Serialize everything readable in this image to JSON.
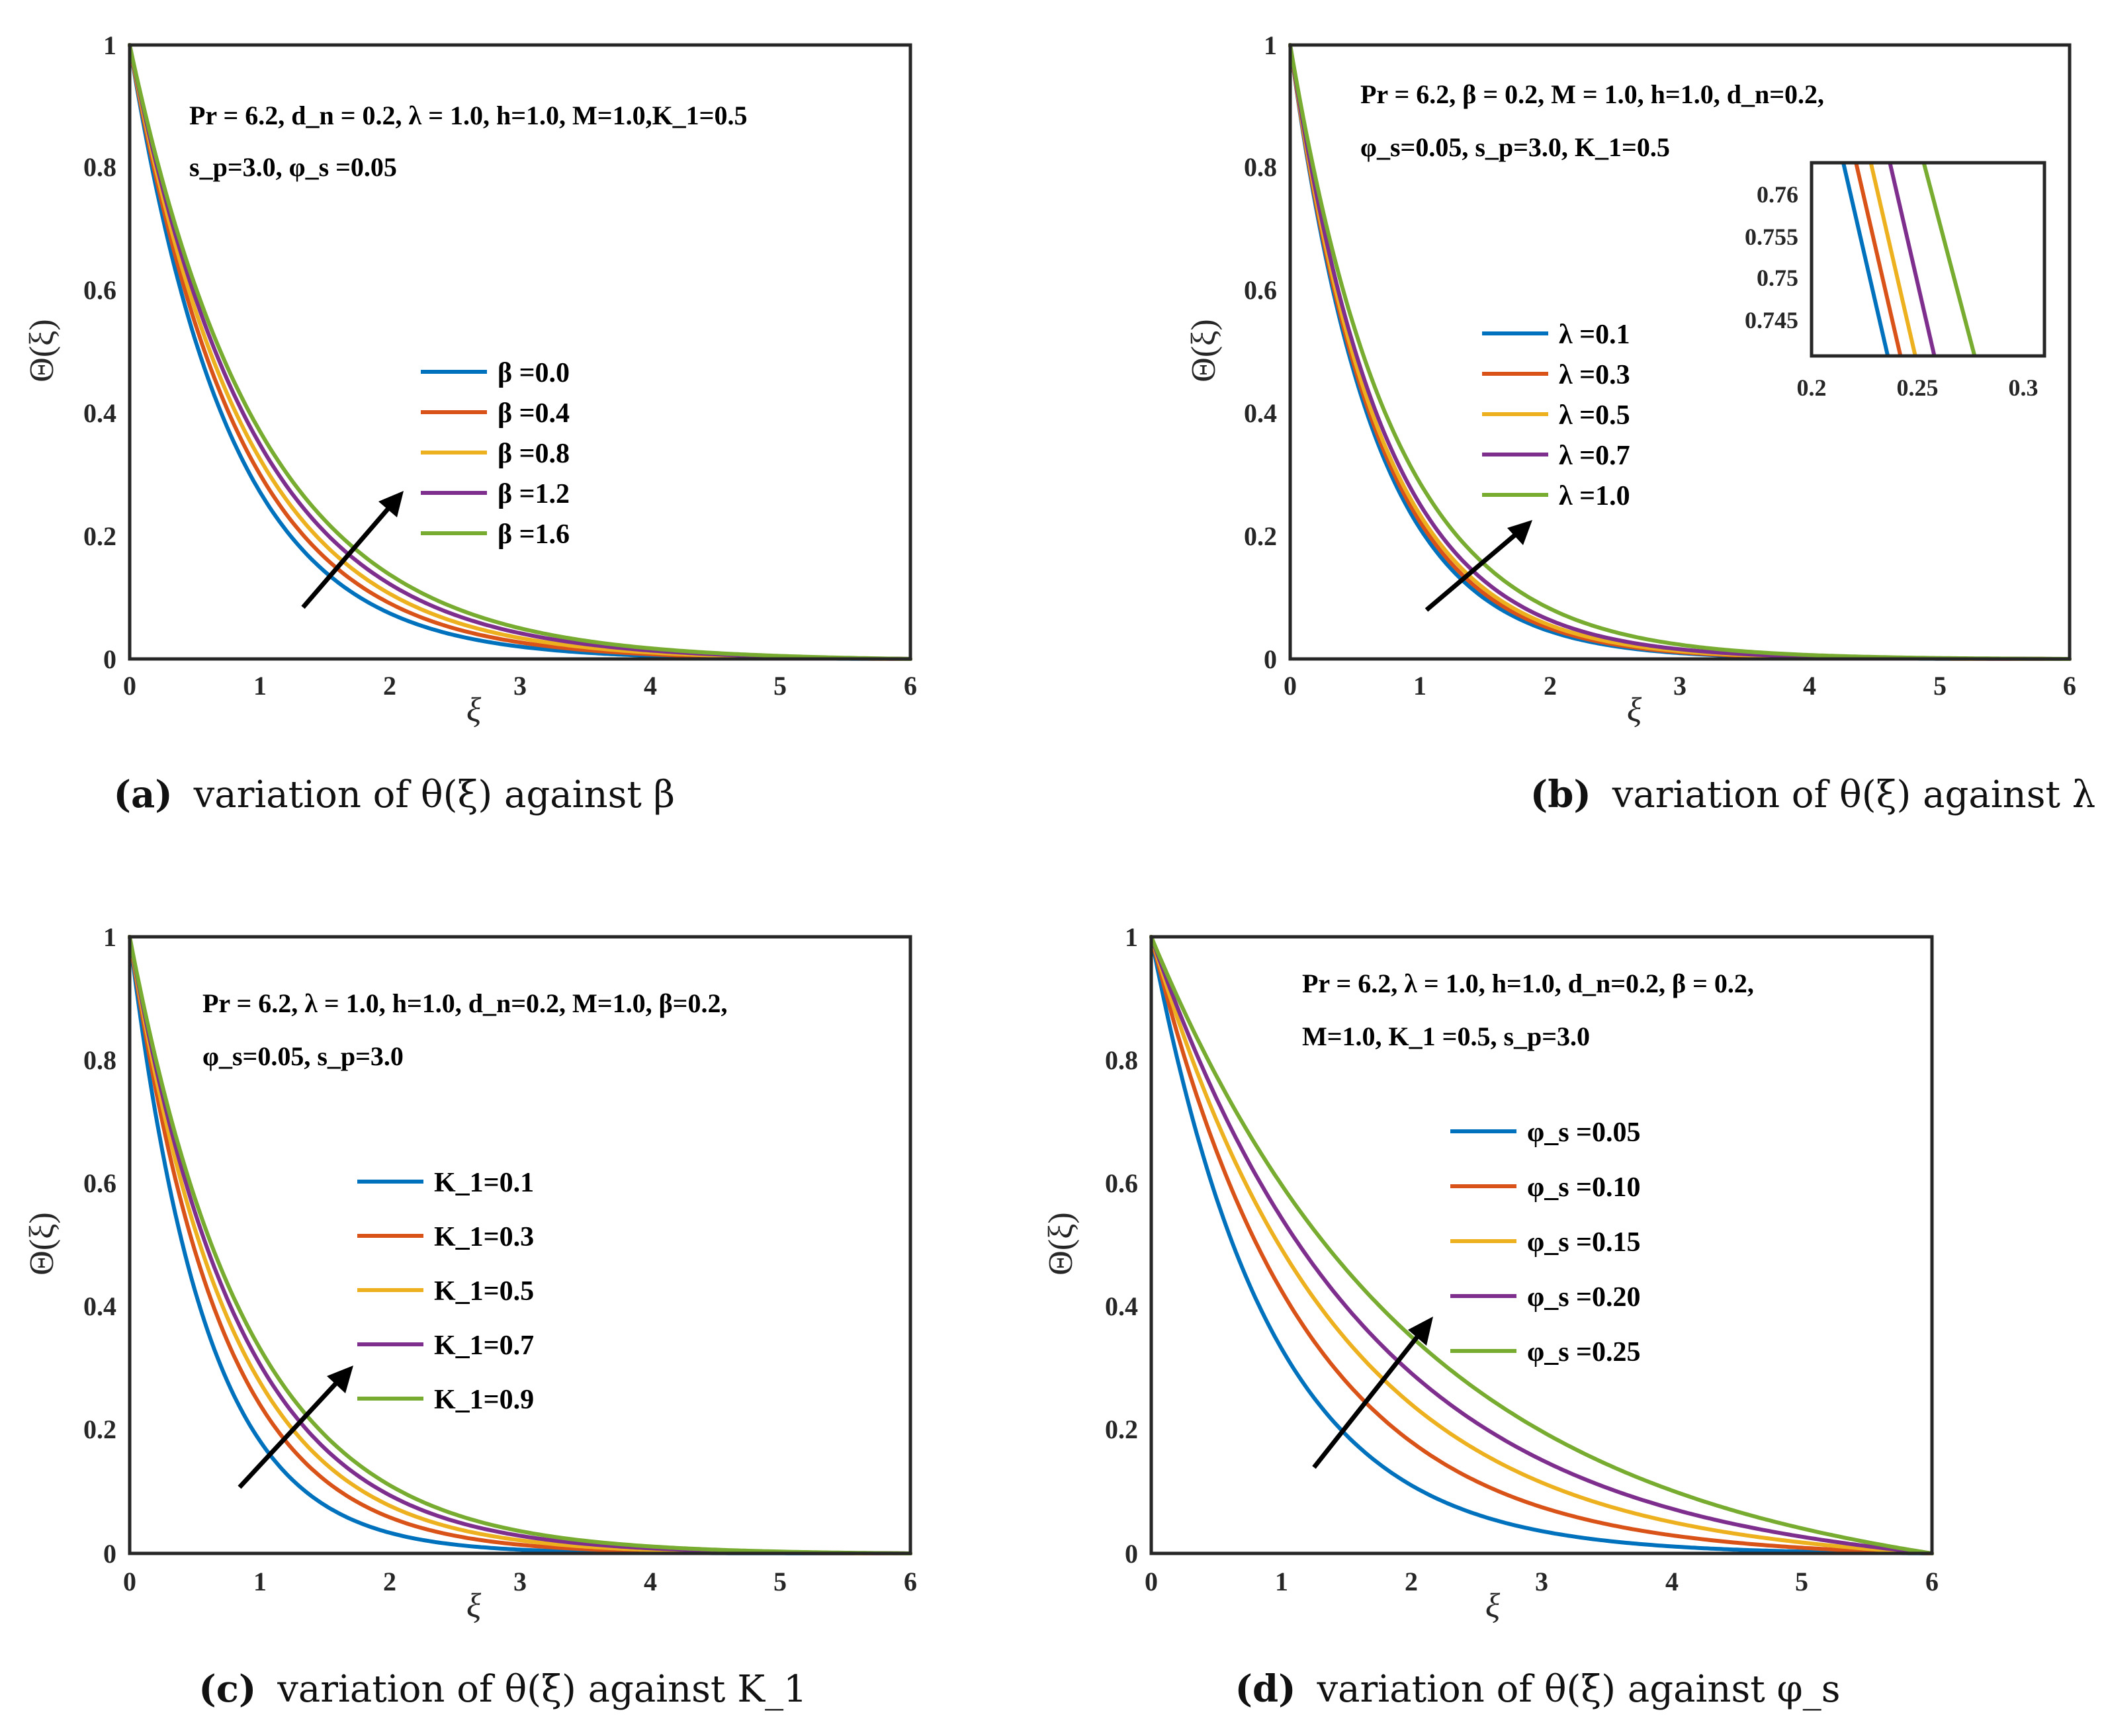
{
  "chart_data": [
    {
      "type": "line",
      "panel": "a",
      "caption": {
        "label": "(a)",
        "text": "variation of θ(ξ) against β"
      },
      "xlabel": "ξ",
      "ylabel": "Θ(ξ)",
      "xlim": [
        0,
        6
      ],
      "ylim": [
        0,
        1
      ],
      "xticks": [
        "0",
        "1",
        "2",
        "3",
        "4",
        "5",
        "6"
      ],
      "yticks": [
        "0",
        "0.2",
        "0.4",
        "0.6",
        "0.8",
        "1"
      ],
      "params": [
        "Pr = 6.2, d_n = 0.2, λ = 1.0, h=1.0, M=1.0,K_1=0.5",
        "s_p=3.0, φ_s =0.05"
      ],
      "legend": [
        "β =0.0",
        "β =0.4",
        "β =0.8",
        "β =1.2",
        "β =1.6"
      ],
      "arrow": "increasing β",
      "series": [
        {
          "name": "β =0.0",
          "color": "#0072BD",
          "decay": 1.3,
          "values": [
            1,
            0.288,
            0.07,
            0.018,
            0.0035,
            0.0007,
            0
          ]
        },
        {
          "name": "β =0.4",
          "color": "#D95319",
          "decay": 1.2,
          "values": [
            1,
            0.316,
            0.087,
            0.025,
            0.006,
            0.0012,
            0
          ]
        },
        {
          "name": "β =0.8",
          "color": "#EDB120",
          "decay": 1.12,
          "values": [
            1,
            0.339,
            0.102,
            0.031,
            0.009,
            0.0019,
            0
          ]
        },
        {
          "name": "β =1.2",
          "color": "#7E2F8E",
          "decay": 1.05,
          "values": [
            1,
            0.361,
            0.119,
            0.04,
            0.012,
            0.0028,
            0
          ]
        },
        {
          "name": "β =1.6",
          "color": "#77AC30",
          "decay": 0.99,
          "values": [
            1,
            0.383,
            0.136,
            0.048,
            0.016,
            0.004,
            0
          ]
        }
      ]
    },
    {
      "type": "line",
      "panel": "b",
      "caption": {
        "label": "(b)",
        "text": "variation of θ(ξ) against λ"
      },
      "xlabel": "ξ",
      "ylabel": "Θ(ξ)",
      "xlim": [
        0,
        6
      ],
      "ylim": [
        0,
        1
      ],
      "xticks": [
        "0",
        "1",
        "2",
        "3",
        "4",
        "5",
        "6"
      ],
      "yticks": [
        "0",
        "0.2",
        "0.4",
        "0.6",
        "0.8",
        "1"
      ],
      "params": [
        "Pr = 6.2, β = 0.2, M = 1.0, h=1.0, d_n=0.2,",
        "φ_s=0.05, s_p=3.0, K_1=0.5"
      ],
      "legend": [
        "λ =0.1",
        "λ =0.3",
        "λ =0.5",
        "λ =0.7",
        "λ =1.0"
      ],
      "arrow": "increasing λ",
      "series": [
        {
          "name": "λ =0.1",
          "color": "#0072BD",
          "decay": 1.55,
          "values": [
            1,
            0.218,
            0.045,
            0.009,
            0.002,
            0.0003,
            0
          ]
        },
        {
          "name": "λ =0.3",
          "color": "#D95319",
          "decay": 1.5,
          "values": [
            1,
            0.228,
            0.05,
            0.011,
            0.0025,
            0.0004,
            0
          ]
        },
        {
          "name": "λ =0.5",
          "color": "#EDB120",
          "decay": 1.45,
          "values": [
            1,
            0.238,
            0.055,
            0.013,
            0.003,
            0.0005,
            0
          ]
        },
        {
          "name": "λ =0.7",
          "color": "#7E2F8E",
          "decay": 1.38,
          "values": [
            1,
            0.256,
            0.064,
            0.016,
            0.004,
            0.0007,
            0
          ]
        },
        {
          "name": "λ =1.0",
          "color": "#77AC30",
          "decay": 1.25,
          "values": [
            1,
            0.292,
            0.083,
            0.024,
            0.006,
            0.0012,
            0
          ]
        }
      ],
      "inset": {
        "xlim": [
          0.2,
          0.31
        ],
        "ylim": [
          0.7415,
          0.7635
        ],
        "xticks": [
          "0.2",
          "0.25",
          "0.3"
        ],
        "yticks": [
          "0.745",
          "0.75",
          "0.755",
          "0.76"
        ],
        "lines": [
          {
            "color": "#0072BD",
            "x_top": 0.215,
            "x_bottom": 0.236
          },
          {
            "color": "#D95319",
            "x_top": 0.221,
            "x_bottom": 0.242
          },
          {
            "color": "#EDB120",
            "x_top": 0.228,
            "x_bottom": 0.249
          },
          {
            "color": "#7E2F8E",
            "x_top": 0.237,
            "x_bottom": 0.258
          },
          {
            "color": "#77AC30",
            "x_top": 0.253,
            "x_bottom": 0.277
          }
        ]
      }
    },
    {
      "type": "line",
      "panel": "c",
      "caption": {
        "label": "(c)",
        "text": "variation of θ(ξ) against K_1"
      },
      "xlabel": "ξ",
      "ylabel": "Θ(ξ)",
      "xlim": [
        0,
        6
      ],
      "ylim": [
        0,
        1
      ],
      "xticks": [
        "0",
        "1",
        "2",
        "3",
        "4",
        "5",
        "6"
      ],
      "yticks": [
        "0",
        "0.2",
        "0.4",
        "0.6",
        "0.8",
        "1"
      ],
      "params": [
        "Pr = 6.2, λ = 1.0, h=1.0, d_n=0.2, M=1.0, β=0.2,",
        "φ_s=0.05, s_p=3.0"
      ],
      "legend": [
        "K_1=0.1",
        "K_1=0.3",
        "K_1=0.5",
        "K_1=0.7",
        "K_1=0.9"
      ],
      "arrow": "increasing K_1",
      "series": [
        {
          "name": "K_1=0.1",
          "color": "#0072BD",
          "decay": 1.7,
          "values": [
            1,
            0.196,
            0.03,
            0.005,
            0.001,
            0.0002,
            0
          ]
        },
        {
          "name": "K_1=0.3",
          "color": "#D95319",
          "decay": 1.42,
          "values": [
            1,
            0.244,
            0.057,
            0.014,
            0.003,
            0.0006,
            0
          ]
        },
        {
          "name": "K_1=0.5",
          "color": "#EDB120",
          "decay": 1.28,
          "values": [
            1,
            0.28,
            0.078,
            0.022,
            0.006,
            0.0012,
            0
          ]
        },
        {
          "name": "K_1=0.7",
          "color": "#7E2F8E",
          "decay": 1.18,
          "values": [
            1,
            0.308,
            0.095,
            0.029,
            0.008,
            0.0018,
            0
          ]
        },
        {
          "name": "K_1=0.9",
          "color": "#77AC30",
          "decay": 1.1,
          "values": [
            1,
            0.335,
            0.111,
            0.036,
            0.011,
            0.0025,
            0
          ]
        }
      ]
    },
    {
      "type": "line",
      "panel": "d",
      "caption": {
        "label": "(d)",
        "text": "variation of θ(ξ) against φ_s"
      },
      "xlabel": "ξ",
      "ylabel": "Θ(ξ)",
      "xlim": [
        0,
        6
      ],
      "ylim": [
        0,
        1
      ],
      "xticks": [
        "0",
        "1",
        "2",
        "3",
        "4",
        "5",
        "6"
      ],
      "yticks": [
        "0",
        "0.2",
        "0.4",
        "0.6",
        "0.8",
        "1"
      ],
      "params": [
        "Pr = 6.2, λ = 1.0, h=1.0, d_n=0.2, β = 0.2,",
        "M=1.0, K_1 =0.5, s_p=3.0"
      ],
      "legend": [
        "φ_s =0.05",
        "φ_s =0.10",
        "φ_s =0.15",
        "φ_s =0.20",
        "φ_s =0.25"
      ],
      "arrow": "increasing φ_s",
      "series": [
        {
          "name": "φ_s =0.05",
          "color": "#0072BD",
          "decay": 1.1,
          "values": [
            1,
            0.33,
            0.108,
            0.035,
            0.011,
            0.003,
            0
          ]
        },
        {
          "name": "φ_s =0.10",
          "color": "#D95319",
          "decay": 0.85,
          "values": [
            1,
            0.425,
            0.18,
            0.075,
            0.03,
            0.01,
            0
          ]
        },
        {
          "name": "φ_s =0.15",
          "color": "#EDB120",
          "decay": 0.7,
          "values": [
            1,
            0.495,
            0.245,
            0.118,
            0.055,
            0.02,
            0
          ]
        },
        {
          "name": "φ_s =0.20",
          "color": "#7E2F8E",
          "decay": 0.6,
          "values": [
            1,
            0.548,
            0.3,
            0.16,
            0.08,
            0.03,
            0
          ]
        },
        {
          "name": "φ_s =0.25",
          "color": "#77AC30",
          "decay": 0.5,
          "values": [
            1,
            0.605,
            0.365,
            0.215,
            0.115,
            0.045,
            0
          ]
        }
      ]
    }
  ]
}
